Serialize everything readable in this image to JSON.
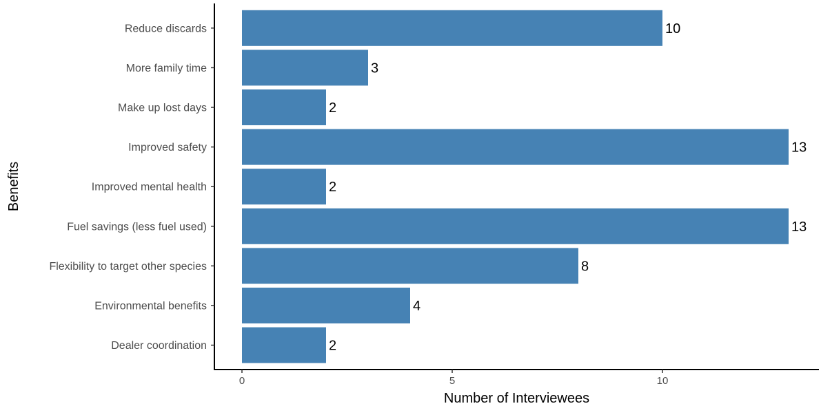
{
  "chart_data": {
    "type": "bar",
    "orientation": "horizontal",
    "categories": [
      "Reduce discards",
      "More family time",
      "Make up lost days",
      "Improved safety",
      "Improved mental health",
      "Fuel savings (less fuel used)",
      "Flexibility to target other species",
      "Environmental benefits",
      "Dealer coordination"
    ],
    "values": [
      10,
      3,
      2,
      13,
      2,
      13,
      8,
      4,
      2
    ],
    "xlabel": "Number of Interviewees",
    "ylabel": "Benefits",
    "xlim": [
      0,
      13
    ],
    "xticks": [
      0,
      5,
      10
    ],
    "grid": false,
    "bar_color": "#4682B4",
    "data_labels": true
  }
}
